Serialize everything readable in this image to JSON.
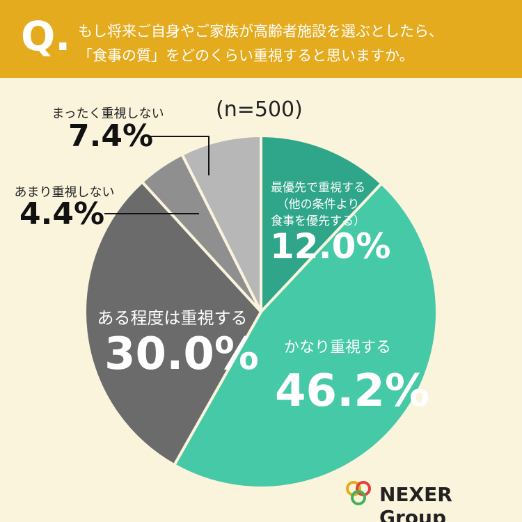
{
  "header": {
    "mark": "Q.",
    "title": "もし将来ご自身やご家族が高齢者施設を選ぶとしたら、\n「食事の質」をどのくらい重視すると思いますか。"
  },
  "chart_data": {
    "type": "pie",
    "subtitle": "(n=500)",
    "categories": [
      "最優先で重視する\n（他の条件より\n食事を優先する）",
      "かなり重視する",
      "ある程度は重視する",
      "あまり重視しない",
      "まったく重視しない"
    ],
    "values": [
      12.0,
      46.2,
      30.0,
      4.4,
      7.4
    ],
    "value_labels": [
      "12.0%",
      "46.2%",
      "30.0%",
      "4.4%",
      "7.4%"
    ],
    "colors": [
      "#2fa68a",
      "#45c9a7",
      "#6b6b6b",
      "#8f8f8f",
      "#b7b7b7"
    ]
  },
  "footer": {
    "logo": "NEXER Group"
  }
}
